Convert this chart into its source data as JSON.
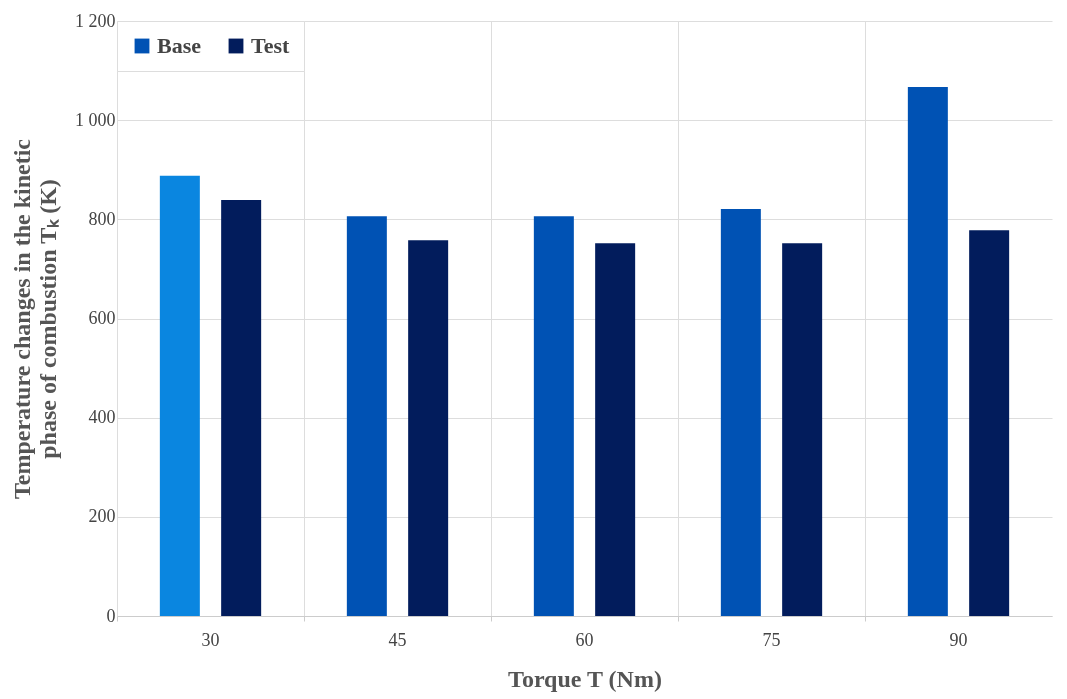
{
  "chart_data": {
    "type": "bar",
    "xlabel": "Torque T (Nm)",
    "ylabel": "Temperature changes in the kinetic phase of combustion Tₖ (K)",
    "categories": [
      "30",
      "45",
      "60",
      "75",
      "90"
    ],
    "series": [
      {
        "name": "Base",
        "color": "#0052b4",
        "colors": [
          "#0a86e0",
          "#0052b4",
          "#0052b4",
          "#0052b4",
          "#0052b4"
        ],
        "values": [
          888,
          806,
          806,
          821,
          1067
        ]
      },
      {
        "name": "Test",
        "color": "#021c5c",
        "values": [
          839,
          758,
          752,
          752,
          778
        ]
      }
    ],
    "ylim": [
      0,
      1200
    ],
    "yticks": [
      0,
      200,
      400,
      600,
      800,
      {
        "value": 1000,
        "label": "1 000"
      },
      {
        "value": 1200,
        "label": "1 200"
      }
    ],
    "grid": true,
    "legend": "top left"
  }
}
